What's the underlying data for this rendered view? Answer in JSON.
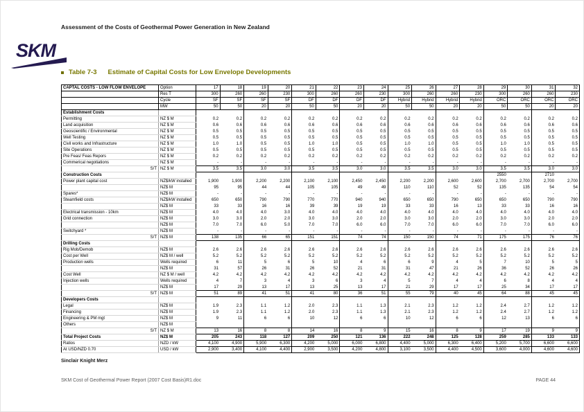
{
  "page": {
    "header_title": "Assessment of the Costs of Geothermal Power Generation in New Zealand",
    "logo_text": "SKM",
    "caption": {
      "label": "Table 7-3",
      "title": "Estimate of Capital Costs for Low Envelope Developments"
    },
    "footer": {
      "company": "Sinclair Knight Merz",
      "document": "SKM Cost of Geothermal Power Report (2007 Cost Basis)R1.doc",
      "page_label": "PAGE 44"
    }
  },
  "colors": {
    "caption_olive": "#787800",
    "caption_bullet_olive": "#6f6f00",
    "logo_navy": "#241a50",
    "footer_gray": "#595959"
  },
  "icons": {
    "caption_bullet": "small-olive-square",
    "logo_swoosh": "underline-swoosh"
  },
  "table": {
    "corner_label": "CAPTAL COSTS - LOW FLOW ENVELOPE",
    "header_rows": [
      {
        "label": "CAPTAL COSTS - LOW FLOW ENVELOPE",
        "unit": "Option",
        "values": [
          "17",
          "18",
          "19",
          "20",
          "21",
          "22",
          "23",
          "24",
          "25",
          "26",
          "27",
          "28",
          "29",
          "30",
          "31",
          "32"
        ]
      },
      {
        "label": "",
        "unit": "Res T",
        "values": [
          "300",
          "260",
          "260",
          "230",
          "300",
          "260",
          "260",
          "230",
          "300",
          "260",
          "260",
          "230",
          "300",
          "260",
          "260",
          "230"
        ]
      },
      {
        "label": "",
        "unit": "Cycle",
        "values": [
          "SF",
          "SF",
          "SF",
          "SF",
          "DF",
          "DF",
          "DF",
          "DF",
          "Hybrid",
          "Hybrid",
          "Hybrid",
          "Hybrid",
          "ORC",
          "ORC",
          "ORC",
          "ORC"
        ]
      },
      {
        "label": "",
        "unit": "MW",
        "values": [
          "50",
          "50",
          "20",
          "20",
          "50",
          "50",
          "20",
          "20",
          "50",
          "50",
          "20",
          "20",
          "50",
          "50",
          "20",
          "20"
        ]
      }
    ],
    "sections": [
      {
        "title": "Establishment Costs",
        "title_values": [
          "",
          "",
          "",
          "",
          "",
          "",
          "",
          "",
          "",
          "",
          "",
          "",
          "",
          "",
          "",
          ""
        ],
        "rows": [
          {
            "label": "Permitting",
            "unit": "NZ $ M",
            "values": [
              "0.2",
              "0.2",
              "0.2",
              "0.2",
              "0.2",
              "0.2",
              "0.2",
              "0.2",
              "0.2",
              "0.2",
              "0.2",
              "0.2",
              "0.2",
              "0.2",
              "0.2",
              "0.2"
            ]
          },
          {
            "label": "Land acquisition",
            "unit": "NZ $ M",
            "values": [
              "0.6",
              "0.6",
              "0.6",
              "0.6",
              "0.6",
              "0.6",
              "0.6",
              "0.6",
              "0.6",
              "0.6",
              "0.6",
              "0.6",
              "0.6",
              "0.6",
              "0.6",
              "0.6"
            ]
          },
          {
            "label": "Geoscientific / Environmental",
            "unit": "NZ $ M",
            "values": [
              "0.5",
              "0.5",
              "0.5",
              "0.5",
              "0.5",
              "0.5",
              "0.5",
              "0.5",
              "0.5",
              "0.5",
              "0.5",
              "0.5",
              "0.5",
              "0.5",
              "0.5",
              "0.5"
            ]
          },
          {
            "label": "Well Testing",
            "unit": "NZ $ M",
            "values": [
              "0.5",
              "0.5",
              "0.5",
              "0.5",
              "0.5",
              "0.5",
              "0.5",
              "0.5",
              "0.5",
              "0.5",
              "0.5",
              "0.5",
              "0.5",
              "0.5",
              "0.5",
              "0.5"
            ]
          },
          {
            "label": "Civil works and Infrastructure",
            "unit": "NZ $ M",
            "values": [
              "1.0",
              "1.0",
              "0.5",
              "0.5",
              "1.0",
              "1.0",
              "0.5",
              "0.5",
              "1.0",
              "1.0",
              "0.5",
              "0.5",
              "1.0",
              "1.0",
              "0.5",
              "0.5"
            ]
          },
          {
            "label": "Site Operations",
            "unit": "NZ $ M",
            "values": [
              "0.5",
              "0.5",
              "0.5",
              "0.5",
              "0.5",
              "0.5",
              "0.5",
              "0.5",
              "0.5",
              "0.5",
              "0.5",
              "0.5",
              "0.5",
              "0.5",
              "0.5",
              "0.5"
            ]
          },
          {
            "label": "Pre Feas/ Feas Repors",
            "unit": "NZ $ M",
            "values": [
              "0.2",
              "0.2",
              "0.2",
              "0.2",
              "0.2",
              "0.2",
              "0.2",
              "0.2",
              "0.2",
              "0.2",
              "0.2",
              "0.2",
              "0.2",
              "0.2",
              "0.2",
              "0.2"
            ]
          },
          {
            "label": "Commerical negotiations",
            "unit": "NZ $ M",
            "values": [
              "-",
              "-",
              "-",
              "-",
              "-",
              "-",
              "-",
              "-",
              "-",
              "-",
              "-",
              "-",
              "-",
              "-",
              "-",
              "-"
            ]
          },
          {
            "label": "S/T",
            "st": true,
            "unit": "NZ $ M",
            "values": [
              "3.5",
              "3.5",
              "3.0",
              "3.0",
              "3.5",
              "3.5",
              "3.0",
              "3.0",
              "3.5",
              "3.5",
              "3.0",
              "3.0",
              "3.5",
              "3.5",
              "3.0",
              "3.0"
            ]
          }
        ]
      },
      {
        "title": "Construction Costs",
        "title_values": [
          "",
          "",
          "",
          "",
          "",
          "",
          "",
          "",
          "",
          "",
          "",
          "",
          "2550",
          "",
          "2710",
          ""
        ],
        "rows": [
          {
            "label": "Power plant capital cost",
            "unit": "NZ$/kW installed",
            "values": [
              "1,900",
              "1,900",
              "2,200",
              "2,200",
              "2,100",
              "2,100",
              "2,450",
              "2,450",
              "2,200",
              "2,200",
              "2,600",
              "2,600",
              "2,700",
              "2,700",
              "2,700",
              "2,700"
            ]
          },
          {
            "label": "",
            "unit": "NZ$ M",
            "values": [
              "95",
              "95",
              "44",
              "44",
              "105",
              "105",
              "49",
              "49",
              "110",
              "110",
              "52",
              "52",
              "135",
              "135",
              "54",
              "54"
            ]
          },
          {
            "label": "Spares*",
            "unit": "NZ$ M",
            "values": [
              "-",
              "-",
              "-",
              "-",
              "-",
              "-",
              "-",
              "-",
              "-",
              "-",
              "-",
              "-",
              "-",
              "-",
              "-",
              "-"
            ]
          },
          {
            "label": "Steamfield costs",
            "unit": "NZ$/kW installed",
            "values": [
              "650",
              "650",
              "790",
              "790",
              "770",
              "770",
              "940",
              "940",
              "650",
              "650",
              "790",
              "650",
              "650",
              "650",
              "790",
              "790"
            ]
          },
          {
            "label": "",
            "unit": "NZ$ M",
            "values": [
              "33",
              "33",
              "16",
              "16",
              "39",
              "39",
              "19",
              "19",
              "33",
              "33",
              "16",
              "13",
              "33",
              "33",
              "16",
              "16"
            ]
          },
          {
            "label": "Electrical transmission - 10km",
            "unit": "NZ$ M",
            "values": [
              "4.0",
              "4.0",
              "4.0",
              "3.0",
              "4.0",
              "4.0",
              "4.0",
              "4.0",
              "4.0",
              "4.0",
              "4.0",
              "4.0",
              "4.0",
              "4.0",
              "4.0",
              "4.0"
            ]
          },
          {
            "label": "Grid connection",
            "unit": "NZ$ M",
            "values": [
              "3.0",
              "3.0",
              "2.0",
              "2.0",
              "3.0",
              "3.0",
              "2.0",
              "2.0",
              "3.0",
              "3.0",
              "2.0",
              "2.0",
              "3.0",
              "3.0",
              "2.0",
              "2.0"
            ]
          },
          {
            "label": "",
            "unit": "NZ$ M",
            "values": [
              "7.0",
              "7.0",
              "6.0",
              "5.0",
              "7.0",
              "7.0",
              "6.0",
              "6.0",
              "7.0",
              "7.0",
              "6.0",
              "6.0",
              "7.0",
              "7.0",
              "6.0",
              "6.0"
            ]
          },
          {
            "label": "Switchyard *",
            "unit": "NZ$ M",
            "values": [
              "-",
              "-",
              "-",
              "-",
              "-",
              "-",
              "-",
              "-",
              "-",
              "-",
              "-",
              "-",
              "-",
              "-",
              "-",
              "-"
            ]
          },
          {
            "label": "S/T",
            "st": true,
            "unit": "NZ$ M",
            "values": [
              "138",
              "135",
              "66",
              "65",
              "151",
              "151",
              "74",
              "74",
              "150",
              "150",
              "74",
              "71",
              "175",
              "175",
              "76",
              "76"
            ]
          }
        ]
      },
      {
        "title": "Drilling Costs",
        "title_values": [
          "",
          "",
          "",
          "",
          "",
          "",
          "",
          "",
          "",
          "",
          "",
          "",
          "",
          "",
          "",
          ""
        ],
        "rows": [
          {
            "label": "Rig Mob/Demob",
            "unit": "NZ$ M",
            "values": [
              "2.6",
              "2.6",
              "2.6",
              "2.6",
              "2.6",
              "2.6",
              "2.6",
              "2.6",
              "2.6",
              "2.6",
              "2.6",
              "2.6",
              "2.6",
              "2.6",
              "2.6",
              "2.6"
            ]
          },
          {
            "label": "Cost per Well",
            "unit": "NZ$ M / well",
            "values": [
              "5.2",
              "5.2",
              "5.2",
              "5.2",
              "5.2",
              "5.2",
              "5.2",
              "5.2",
              "5.2",
              "5.2",
              "5.2",
              "5.2",
              "5.2",
              "5.2",
              "5.2",
              "5.2"
            ]
          },
          {
            "label": "Production wells",
            "unit": "Wells required",
            "values": [
              "6",
              "11",
              "5",
              "6",
              "5",
              "10",
              "4",
              "6",
              "6",
              "9",
              "4",
              "5",
              "7",
              "10",
              "5",
              "5"
            ]
          },
          {
            "label": "",
            "unit": "NZ$ M",
            "values": [
              "31",
              "57",
              "26",
              "31",
              "26",
              "52",
              "21",
              "31",
              "31",
              "47",
              "21",
              "26",
              "36",
              "52",
              "26",
              "26"
            ]
          },
          {
            "label": "Cost Well",
            "unit": "NZ $ M / well",
            "values": [
              "4.2",
              "4.2",
              "4.2",
              "4.2",
              "4.2",
              "4.2",
              "4.2",
              "4.2",
              "4.2",
              "4.2",
              "4.2",
              "4.2",
              "4.2",
              "4.2",
              "4.2",
              "4.2"
            ]
          },
          {
            "label": "Injection wells",
            "unit": "Wells required",
            "values": [
              "4",
              "7",
              "3",
              "4",
              "3",
              "6",
              "3",
              "4",
              "5",
              "7",
              "4",
              "4",
              "6",
              "8",
              "4",
              "4"
            ]
          },
          {
            "label": "",
            "unit": "NZ$ M",
            "values": [
              "17",
              "29",
              "13",
              "17",
              "13",
              "25",
              "13",
              "17",
              "21",
              "29",
              "17",
              "17",
              "25",
              "34",
              "17",
              "17"
            ]
          },
          {
            "label": "S/T",
            "st": true,
            "unit": "NZ$ M",
            "values": [
              "51",
              "89",
              "41",
              "51",
              "41",
              "80",
              "36",
              "51",
              "55",
              "79",
              "40",
              "45",
              "64",
              "88",
              "45",
              "45"
            ]
          }
        ]
      },
      {
        "title": "Developers Costs",
        "title_values": [
          "",
          "",
          "",
          "",
          "",
          "",
          "",
          "",
          "",
          "",
          "",
          "",
          "",
          "",
          "",
          ""
        ],
        "rows": [
          {
            "label": "Legal",
            "unit": "NZ$ M",
            "values": [
              "1.9",
              "2.3",
              "1.1",
              "1.2",
              "2.0",
              "2.3",
              "1.1",
              "1.3",
              "2.1",
              "2.3",
              "1.2",
              "1.2",
              "2.4",
              "2.7",
              "1.2",
              "1.2"
            ]
          },
          {
            "label": "Financing",
            "unit": "NZ$ M",
            "values": [
              "1.9",
              "2.3",
              "1.1",
              "1.2",
              "2.0",
              "2.3",
              "1.1",
              "1.3",
              "2.1",
              "2.3",
              "1.2",
              "1.2",
              "2.4",
              "2.7",
              "1.2",
              "1.2"
            ]
          },
          {
            "label": "Engineering & PM mgt",
            "unit": "NZ$ M",
            "values": [
              "9",
              "11",
              "6",
              "6",
              "10",
              "12",
              "6",
              "6",
              "10",
              "12",
              "6",
              "6",
              "12",
              "13",
              "6",
              "6"
            ]
          },
          {
            "label": "Others",
            "unit": "NZ$ M",
            "values": [
              "",
              "",
              "",
              "",
              "",
              "",
              "",
              "",
              "",
              "",
              "",
              "",
              "",
              "",
              "",
              ""
            ]
          },
          {
            "label": "S/T",
            "st": true,
            "unit": "NZ $ M",
            "values": [
              "13",
              "16",
              "8",
              "8",
              "14",
              "16",
              "8",
              "9",
              "15",
              "16",
              "8",
              "9",
              "17",
              "19",
              "9",
              "9"
            ]
          }
        ]
      }
    ],
    "totals": [
      {
        "label": "Total Project Costs",
        "unit": "NZ$ M",
        "bold": true,
        "values": [
          "205",
          "243",
          "118",
          "127",
          "209",
          "250",
          "121",
          "136",
          "222",
          "248",
          "125",
          "128",
          "259",
          "285",
          "133",
          "133"
        ]
      },
      {
        "label": "Ratios",
        "unit": "NZD / kW",
        "values": [
          "4,100",
          "4,900",
          "5,900",
          "6,300",
          "4,200",
          "5,000",
          "6,000",
          "6,800",
          "4,400",
          "5,000",
          "6,300",
          "6,400",
          "5,200",
          "5,700",
          "6,600",
          "6,600"
        ]
      },
      {
        "label": "At USD/NZD 0.70",
        "unit": "USD / kW",
        "values": [
          "2,900",
          "3,400",
          "4,100",
          "4,400",
          "2,900",
          "3,500",
          "4,200",
          "4,800",
          "3,100",
          "3,500",
          "4,400",
          "4,500",
          "3,600",
          "4,000",
          "4,600",
          "4,600"
        ]
      }
    ]
  }
}
